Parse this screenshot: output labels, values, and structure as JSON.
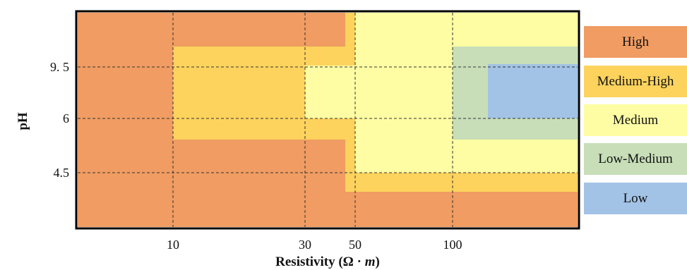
{
  "chart_data": {
    "type": "heatmap",
    "title": "",
    "xlabel": "Resistivity (Ω · m)",
    "xlabel_plain": "Resistivity (Ω · ",
    "xlabel_italic": "m",
    "xlabel_close": ")",
    "ylabel": "pH",
    "x_ticks": [
      "10",
      "30",
      "50",
      "100"
    ],
    "y_ticks": [
      "9. 5",
      "6",
      "4.5"
    ],
    "grid": true,
    "legend_position": "right",
    "legend": [
      {
        "label": "High",
        "color": "#f09c62"
      },
      {
        "label": "Medium-High",
        "color": "#fdd35d"
      },
      {
        "label": "Medium",
        "color": "#fefda3"
      },
      {
        "label": "Low-Medium",
        "color": "#c7deb8"
      },
      {
        "label": "Low",
        "color": "#a2c3e5"
      }
    ],
    "regions": [
      {
        "level": "High",
        "resistivity": "all",
        "pH": "all"
      },
      {
        "level": "Medium-High",
        "resistivity": "10–50",
        "pH": "≈4.8–10.2"
      },
      {
        "level": "Medium-High",
        "resistivity": "≈45–above 100",
        "pH": "≈3.8–11.2"
      },
      {
        "level": "Medium",
        "resistivity": "30–50",
        "pH": "≈6–9.5"
      },
      {
        "level": "Medium",
        "resistivity": "50–above 100",
        "pH": "≈4.2–11.2"
      },
      {
        "level": "Low-Medium",
        "resistivity": "100–above 100",
        "pH": "≈5.5–10.2"
      },
      {
        "level": "Low",
        "resistivity": "≈130–above 100",
        "pH": "≈6–9.5"
      }
    ]
  }
}
